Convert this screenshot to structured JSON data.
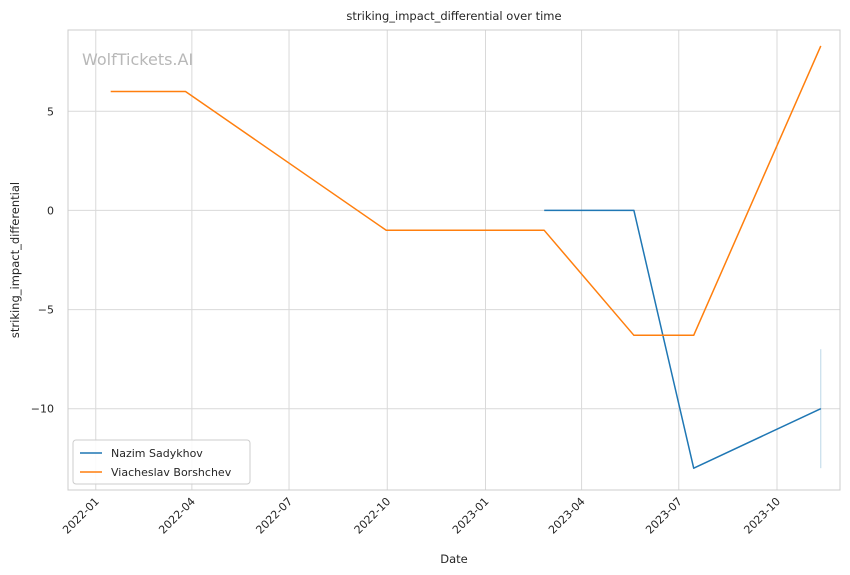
{
  "chart_data": {
    "type": "line",
    "title": "striking_impact_differential over time",
    "xlabel": "Date",
    "ylabel": "striking_impact_differential",
    "watermark": "WolfTickets.AI",
    "x_ticks": [
      "2022-01",
      "2022-04",
      "2022-07",
      "2022-10",
      "2023-01",
      "2023-04",
      "2023-07",
      "2023-10"
    ],
    "y_ticks": [
      5,
      0,
      -5,
      -10
    ],
    "y_tick_labels": [
      "5",
      "0",
      "−5",
      "−10"
    ],
    "xlim": [
      "2021-12-06",
      "2023-11-29"
    ],
    "ylim": [
      -14.1,
      9.1
    ],
    "grid": true,
    "legend_position": "lower-left",
    "series": [
      {
        "name": "Nazim Sadykhov",
        "color": "#1f77b4",
        "x": [
          "2023-02-25",
          "2023-05-20",
          "2023-07-15",
          "2023-11-11"
        ],
        "y": [
          0,
          0,
          -13,
          -10
        ]
      },
      {
        "name": "Viacheslav Borshchev",
        "color": "#ff7f0e",
        "x": [
          "2022-01-15",
          "2022-03-26",
          "2022-09-30",
          "2023-02-25",
          "2023-05-20",
          "2023-07-15",
          "2023-11-11"
        ],
        "y": [
          6,
          6,
          -1,
          -1,
          -6.3,
          -6.3,
          8.3
        ]
      }
    ],
    "error_band": {
      "series": "Nazim Sadykhov",
      "x": "2023-11-11",
      "low": -13,
      "high": -7
    }
  }
}
